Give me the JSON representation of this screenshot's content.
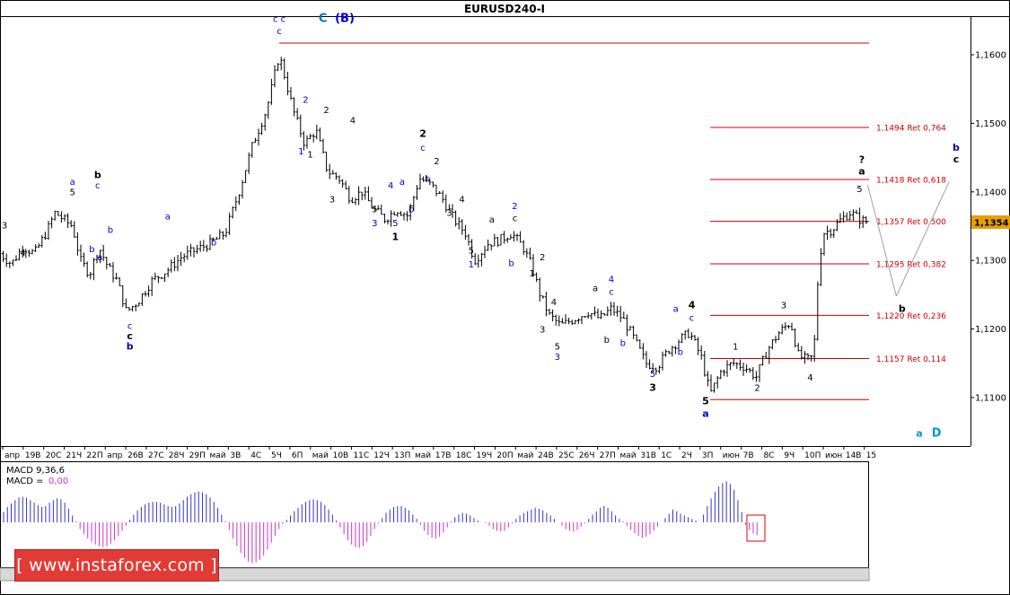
{
  "window": {
    "title": "EURUSD240-I"
  },
  "price_label": {
    "value": "1,1354",
    "color": "#e6a000"
  },
  "chart_data": {
    "type": "candlestick",
    "title": "EURUSD240-I",
    "y_axis": {
      "range": [
        1.1035,
        1.165
      ],
      "ticks": [
        {
          "v": 1.16,
          "label": "1,1600"
        },
        {
          "v": 1.15,
          "label": "1,1500"
        },
        {
          "v": 1.14,
          "label": "1,1400"
        },
        {
          "v": 1.13,
          "label": "1,1300"
        },
        {
          "v": 1.12,
          "label": "1,1200"
        },
        {
          "v": 1.11,
          "label": "1,1100"
        }
      ]
    },
    "x_ticks": [
      "апр",
      "19В",
      "20С",
      "21Ч",
      "22П",
      "апр",
      "26В",
      "27С",
      "28Ч",
      "29П",
      "май",
      "3В",
      "4С",
      "5Ч",
      "6П",
      "май",
      "10В",
      "11С",
      "12Ч",
      "13П",
      "май",
      "17В",
      "18С",
      "19Ч",
      "20П",
      "май",
      "24В",
      "25С",
      "26Ч",
      "27П",
      "май",
      "31В",
      "1С",
      "2Ч",
      "3П",
      "июн",
      "7В",
      "8С",
      "9Ч",
      "10П",
      "июн",
      "14В",
      "15"
    ],
    "fib_levels": [
      {
        "v": 1.1494,
        "label": "1,1494 Ret 0,764",
        "x0": 0.618
      },
      {
        "v": 1.1418,
        "label": "1,1418 Ret 0,618",
        "x0": 0.618
      },
      {
        "v": 1.1357,
        "label": "1,1357 Ret 0,500",
        "x0": 0.618
      },
      {
        "v": 1.1295,
        "label": "1,1295 Ret 0,382",
        "x0": 0.618
      },
      {
        "v": 1.122,
        "label": "1,1220 Ret 0,236",
        "x0": 0.618
      },
      {
        "v": 1.1157,
        "label": "1,1157 Ret 0,114",
        "x0": 0.618
      }
    ],
    "extreme_levels": [
      {
        "v": 1.1617,
        "x0": 0.243
      },
      {
        "v": 1.1097,
        "x0": 0.618
      }
    ],
    "price_path": [
      [
        0.0,
        1.131
      ],
      [
        0.01,
        1.1295
      ],
      [
        0.02,
        1.132
      ],
      [
        0.03,
        1.131
      ],
      [
        0.04,
        1.134
      ],
      [
        0.048,
        1.137
      ],
      [
        0.055,
        1.136
      ],
      [
        0.063,
        1.135
      ],
      [
        0.07,
        1.13
      ],
      [
        0.078,
        1.128
      ],
      [
        0.086,
        1.132
      ],
      [
        0.094,
        1.129
      ],
      [
        0.102,
        1.127
      ],
      [
        0.11,
        1.1225
      ],
      [
        0.12,
        1.124
      ],
      [
        0.132,
        1.127
      ],
      [
        0.145,
        1.1285
      ],
      [
        0.158,
        1.1305
      ],
      [
        0.17,
        1.1315
      ],
      [
        0.183,
        1.1325
      ],
      [
        0.196,
        1.134
      ],
      [
        0.208,
        1.14
      ],
      [
        0.22,
        1.147
      ],
      [
        0.232,
        1.152
      ],
      [
        0.243,
        1.16
      ],
      [
        0.255,
        1.152
      ],
      [
        0.265,
        1.147
      ],
      [
        0.275,
        1.149
      ],
      [
        0.285,
        1.143
      ],
      [
        0.295,
        1.142
      ],
      [
        0.305,
        1.139
      ],
      [
        0.315,
        1.14
      ],
      [
        0.325,
        1.1375
      ],
      [
        0.335,
        1.136
      ],
      [
        0.345,
        1.1375
      ],
      [
        0.355,
        1.1365
      ],
      [
        0.365,
        1.142
      ],
      [
        0.375,
        1.141
      ],
      [
        0.385,
        1.139
      ],
      [
        0.395,
        1.136
      ],
      [
        0.405,
        1.134
      ],
      [
        0.413,
        1.13
      ],
      [
        0.425,
        1.1325
      ],
      [
        0.435,
        1.133
      ],
      [
        0.445,
        1.134
      ],
      [
        0.455,
        1.132
      ],
      [
        0.463,
        1.129
      ],
      [
        0.47,
        1.125
      ],
      [
        0.478,
        1.122
      ],
      [
        0.488,
        1.1205
      ],
      [
        0.5,
        1.1215
      ],
      [
        0.512,
        1.1225
      ],
      [
        0.522,
        1.1215
      ],
      [
        0.532,
        1.123
      ],
      [
        0.542,
        1.1215
      ],
      [
        0.552,
        1.1185
      ],
      [
        0.562,
        1.115
      ],
      [
        0.572,
        1.1145
      ],
      [
        0.582,
        1.117
      ],
      [
        0.592,
        1.1185
      ],
      [
        0.6,
        1.1195
      ],
      [
        0.61,
        1.116
      ],
      [
        0.618,
        1.1105
      ],
      [
        0.628,
        1.114
      ],
      [
        0.638,
        1.115
      ],
      [
        0.648,
        1.1145
      ],
      [
        0.658,
        1.113
      ],
      [
        0.668,
        1.117
      ],
      [
        0.678,
        1.1195
      ],
      [
        0.688,
        1.121
      ],
      [
        0.695,
        1.116
      ],
      [
        0.703,
        1.1155
      ],
      [
        0.708,
        1.116
      ],
      [
        0.712,
        1.128
      ],
      [
        0.716,
        1.134
      ],
      [
        0.724,
        1.1345
      ],
      [
        0.732,
        1.136
      ],
      [
        0.74,
        1.137
      ],
      [
        0.748,
        1.136
      ],
      [
        0.755,
        1.1355
      ]
    ],
    "wave_labels": [
      {
        "x": 0.243,
        "v": 1.1648,
        "text": "c c",
        "color": "#0000cc",
        "size": "lbl"
      },
      {
        "x": 0.281,
        "v": 1.1648,
        "text": "C",
        "color": "#0070c0",
        "size": "big"
      },
      {
        "x": 0.3,
        "v": 1.1648,
        "text": "(B)",
        "color": "#0000cc",
        "size": "big"
      },
      {
        "x": 0.243,
        "v": 1.163,
        "text": "c",
        "color": "#0000cc",
        "size": "lbl"
      },
      {
        "x": 0.266,
        "v": 1.153,
        "text": "2",
        "color": "#0000cc",
        "size": "lbl"
      },
      {
        "x": 0.262,
        "v": 1.1455,
        "text": "1",
        "color": "#0000cc",
        "size": "lbl"
      },
      {
        "x": 0.284,
        "v": 1.1515,
        "text": "2",
        "color": "#000",
        "size": "lbl"
      },
      {
        "x": 0.27,
        "v": 1.145,
        "text": "1",
        "color": "#000",
        "size": "lbl"
      },
      {
        "x": 0.307,
        "v": 1.15,
        "text": "4",
        "color": "#000",
        "size": "lbl"
      },
      {
        "x": 0.289,
        "v": 1.1385,
        "text": "3",
        "color": "#000",
        "size": "lbl"
      },
      {
        "x": 0.34,
        "v": 1.1405,
        "text": "4",
        "color": "#0000cc",
        "size": "lbl"
      },
      {
        "x": 0.326,
        "v": 1.137,
        "text": "5",
        "color": "#000",
        "size": "lbl"
      },
      {
        "x": 0.326,
        "v": 1.135,
        "text": "3",
        "color": "#0000cc",
        "size": "lbl"
      },
      {
        "x": 0.344,
        "v": 1.135,
        "text": "5",
        "color": "#0000cc",
        "size": "lbl"
      },
      {
        "x": 0.344,
        "v": 1.133,
        "text": "1",
        "color": "#000",
        "size": "lblb"
      },
      {
        "x": 0.358,
        "v": 1.137,
        "text": "b",
        "color": "#0000cc",
        "size": "lbl"
      },
      {
        "x": 0.35,
        "v": 1.141,
        "text": "a",
        "color": "#0000cc",
        "size": "lbl"
      },
      {
        "x": 0.368,
        "v": 1.148,
        "text": "2",
        "color": "#000",
        "size": "lblb"
      },
      {
        "x": 0.368,
        "v": 1.146,
        "text": "c",
        "color": "#0000cc",
        "size": "lbl"
      },
      {
        "x": 0.38,
        "v": 1.144,
        "text": "2",
        "color": "#000",
        "size": "lbl"
      },
      {
        "x": 0.372,
        "v": 1.1415,
        "text": "b",
        "color": "#0000cc",
        "size": "lbl"
      },
      {
        "x": 0.391,
        "v": 1.1365,
        "text": "3",
        "color": "#000",
        "size": "lbl"
      },
      {
        "x": 0.402,
        "v": 1.1385,
        "text": "4",
        "color": "#000",
        "size": "lbl"
      },
      {
        "x": 0.41,
        "v": 1.131,
        "text": "5",
        "color": "#000",
        "size": "lbl"
      },
      {
        "x": 0.41,
        "v": 1.129,
        "text": "1",
        "color": "#0000cc",
        "size": "lbl"
      },
      {
        "x": 0.428,
        "v": 1.1355,
        "text": "a",
        "color": "#000",
        "size": "lbl"
      },
      {
        "x": 0.448,
        "v": 1.1375,
        "text": "2",
        "color": "#0000cc",
        "size": "lbl"
      },
      {
        "x": 0.448,
        "v": 1.1357,
        "text": "c",
        "color": "#000",
        "size": "lbl"
      },
      {
        "x": 0.445,
        "v": 1.1292,
        "text": "b",
        "color": "#0000cc",
        "size": "lbl"
      },
      {
        "x": 0.472,
        "v": 1.13,
        "text": "2",
        "color": "#000",
        "size": "lbl"
      },
      {
        "x": 0.463,
        "v": 1.1277,
        "text": "1",
        "color": "#000",
        "size": "lbl"
      },
      {
        "x": 0.482,
        "v": 1.1235,
        "text": "4",
        "color": "#000",
        "size": "lbl"
      },
      {
        "x": 0.472,
        "v": 1.1195,
        "text": "3",
        "color": "#000",
        "size": "lbl"
      },
      {
        "x": 0.485,
        "v": 1.117,
        "text": "5",
        "color": "#000",
        "size": "lbl"
      },
      {
        "x": 0.485,
        "v": 1.1155,
        "text": "3",
        "color": "#0000cc",
        "size": "lbl"
      },
      {
        "x": 0.518,
        "v": 1.1255,
        "text": "a",
        "color": "#000",
        "size": "lbl"
      },
      {
        "x": 0.532,
        "v": 1.1268,
        "text": "4",
        "color": "#0000cc",
        "size": "lbl"
      },
      {
        "x": 0.532,
        "v": 1.125,
        "text": "c",
        "color": "#0000cc",
        "size": "lbl"
      },
      {
        "x": 0.528,
        "v": 1.118,
        "text": "b",
        "color": "#000",
        "size": "lbl"
      },
      {
        "x": 0.542,
        "v": 1.1175,
        "text": "b",
        "color": "#0000cc",
        "size": "lbl"
      },
      {
        "x": 0.568,
        "v": 1.113,
        "text": "5",
        "color": "#0000cc",
        "size": "lbl"
      },
      {
        "x": 0.568,
        "v": 1.111,
        "text": "3",
        "color": "#000",
        "size": "lblb"
      },
      {
        "x": 0.588,
        "v": 1.1225,
        "text": "a",
        "color": "#0000cc",
        "size": "lbl"
      },
      {
        "x": 0.602,
        "v": 1.123,
        "text": "4",
        "color": "#000",
        "size": "lblb"
      },
      {
        "x": 0.602,
        "v": 1.1212,
        "text": "c",
        "color": "#0000cc",
        "size": "lbl"
      },
      {
        "x": 0.592,
        "v": 1.1162,
        "text": "b",
        "color": "#0000cc",
        "size": "lbl"
      },
      {
        "x": 0.614,
        "v": 1.109,
        "text": "5",
        "color": "#000",
        "size": "lblb"
      },
      {
        "x": 0.614,
        "v": 1.1072,
        "text": "a",
        "color": "#0000cc",
        "size": "lblb"
      },
      {
        "x": 0.64,
        "v": 1.117,
        "text": "1",
        "color": "#000",
        "size": "lbl"
      },
      {
        "x": 0.659,
        "v": 1.111,
        "text": "2",
        "color": "#000",
        "size": "lbl"
      },
      {
        "x": 0.682,
        "v": 1.123,
        "text": "3",
        "color": "#000",
        "size": "lbl"
      },
      {
        "x": 0.705,
        "v": 1.1125,
        "text": "4",
        "color": "#000",
        "size": "lbl"
      },
      {
        "x": 0.748,
        "v": 1.14,
        "text": "5",
        "color": "#000",
        "size": "lbl"
      },
      {
        "x": 0.75,
        "v": 1.1442,
        "text": "?",
        "color": "#000",
        "size": "lblb"
      },
      {
        "x": 0.75,
        "v": 1.1425,
        "text": "a",
        "color": "#000",
        "size": "lblb"
      },
      {
        "x": 0.785,
        "v": 1.1225,
        "text": "b",
        "color": "#000",
        "size": "lblb"
      },
      {
        "x": 0.832,
        "v": 1.146,
        "text": "b",
        "color": "#0000cc",
        "size": "lblb"
      },
      {
        "x": 0.832,
        "v": 1.1443,
        "text": "c",
        "color": "#000",
        "size": "lblb"
      },
      {
        "x": 0.8,
        "v": 1.1043,
        "text": "a",
        "color": "#0097d0",
        "size": "lblb"
      },
      {
        "x": 0.815,
        "v": 1.1043,
        "text": "D",
        "color": "#0097d0",
        "size": "big"
      },
      {
        "x": 0.004,
        "v": 1.1347,
        "text": "3",
        "color": "#000",
        "size": "lbl"
      },
      {
        "x": 0.02,
        "v": 1.1307,
        "text": "4",
        "color": "#000",
        "size": "lbl"
      },
      {
        "x": 0.063,
        "v": 1.141,
        "text": "a",
        "color": "#0000cc",
        "size": "lbl"
      },
      {
        "x": 0.063,
        "v": 1.1395,
        "text": "5",
        "color": "#000",
        "size": "lbl"
      },
      {
        "x": 0.085,
        "v": 1.142,
        "text": "b",
        "color": "#000",
        "size": "lblb"
      },
      {
        "x": 0.085,
        "v": 1.1405,
        "text": "c",
        "color": "#0000cc",
        "size": "lbl"
      },
      {
        "x": 0.096,
        "v": 1.134,
        "text": "b",
        "color": "#0000cc",
        "size": "lbl"
      },
      {
        "x": 0.08,
        "v": 1.1312,
        "text": "b",
        "color": "#0000cc",
        "size": "lbl"
      },
      {
        "x": 0.087,
        "v": 1.13,
        "text": "a",
        "color": "#0000cc",
        "size": "lbl"
      },
      {
        "x": 0.113,
        "v": 1.12,
        "text": "c",
        "color": "#0000cc",
        "size": "lbl"
      },
      {
        "x": 0.113,
        "v": 1.1185,
        "text": "c",
        "color": "#000",
        "size": "lblb"
      },
      {
        "x": 0.113,
        "v": 1.117,
        "text": "b",
        "color": "#0000cc",
        "size": "lblb"
      },
      {
        "x": 0.146,
        "v": 1.136,
        "text": "a",
        "color": "#0000cc",
        "size": "lbl"
      },
      {
        "x": 0.186,
        "v": 1.1322,
        "text": "b",
        "color": "#0000cc",
        "size": "lbl"
      }
    ],
    "projection": [
      [
        0.755,
        1.141
      ],
      [
        0.78,
        1.1248
      ],
      [
        0.826,
        1.1415
      ]
    ],
    "macd": {
      "label": "MACD 9,36,6",
      "label2": "MACD =",
      "value": "0,00",
      "histogram_color_pos": "#3333cc",
      "histogram_color_neg": "#cc33cc",
      "values": [
        1.2,
        1.8,
        2.2,
        2.6,
        2.9,
        3.0,
        2.9,
        2.6,
        2.3,
        2.0,
        1.8,
        1.9,
        2.3,
        2.6,
        2.8,
        2.7,
        2.3,
        1.6,
        0.8,
        0.1,
        -0.8,
        -1.4,
        -1.9,
        -2.3,
        -2.6,
        -2.8,
        -2.9,
        -2.8,
        -2.5,
        -2.1,
        -1.6,
        -1.0,
        -0.4,
        0.3,
        0.9,
        1.4,
        1.8,
        2.1,
        2.3,
        2.4,
        2.4,
        2.3,
        2.1,
        1.9,
        1.8,
        1.9,
        2.2,
        2.6,
        3.0,
        3.3,
        3.5,
        3.6,
        3.5,
        3.3,
        2.9,
        2.4,
        1.7,
        0.9,
        0.1,
        -0.9,
        -1.9,
        -2.8,
        -3.6,
        -4.2,
        -4.6,
        -4.8,
        -4.7,
        -4.4,
        -3.9,
        -3.2,
        -2.4,
        -1.6,
        -0.8,
        -0.2,
        0.3,
        0.8,
        1.3,
        1.7,
        2.1,
        2.4,
        2.6,
        2.7,
        2.6,
        2.4,
        2.0,
        1.5,
        0.9,
        0.2,
        -0.6,
        -1.4,
        -2.1,
        -2.6,
        -2.9,
        -3.0,
        -2.8,
        -2.3,
        -1.6,
        -0.8,
        -0.1,
        0.5,
        1.1,
        1.5,
        1.8,
        1.9,
        1.9,
        1.7,
        1.4,
        0.9,
        0.4,
        -0.3,
        -1.0,
        -1.5,
        -1.8,
        -1.9,
        -1.7,
        -1.2,
        -0.6,
        0.1,
        0.6,
        0.9,
        1.1,
        1.0,
        0.8,
        0.5,
        0.2,
        0.0,
        -0.1,
        -0.4,
        -0.8,
        -1.0,
        -1.1,
        -1.0,
        -0.6,
        -0.1,
        0.4,
        0.8,
        1.1,
        1.3,
        1.5,
        1.7,
        1.6,
        1.4,
        1.1,
        0.8,
        0.4,
        0.0,
        -0.4,
        -0.8,
        -1.0,
        -1.1,
        -0.9,
        -0.5,
        -0.1,
        0.4,
        0.9,
        1.3,
        1.7,
        1.9,
        1.7,
        1.3,
        0.8,
        0.4,
        0.1,
        -0.4,
        -0.9,
        -1.3,
        -1.6,
        -1.8,
        -1.7,
        -1.4,
        -1.0,
        -0.5,
        0.0,
        0.5,
        1.0,
        1.5,
        1.3,
        1.0,
        0.8,
        0.6,
        0.4,
        0.2,
        0.0,
        0.9,
        1.9,
        2.8,
        3.6,
        4.2,
        4.6,
        4.8,
        4.5,
        3.8,
        2.6,
        1.2,
        -0.3,
        -0.9,
        -1.3,
        -1.5
      ]
    }
  },
  "watermark": {
    "text": "[ www.instaforex.com ]"
  }
}
